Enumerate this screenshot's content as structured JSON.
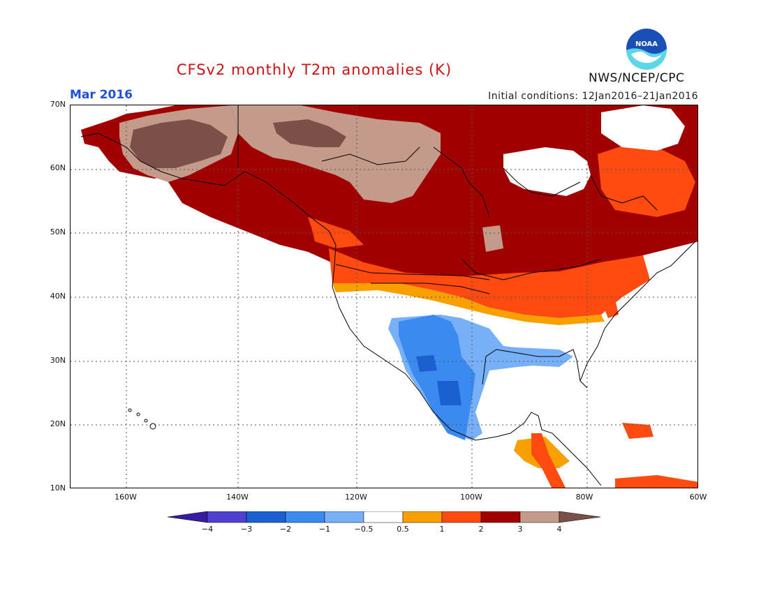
{
  "title": "CFSv2 monthly T2m anomalies (K)",
  "month": "Mar 2016",
  "initial_conditions": "Initial conditions: 12Jan2016–21Jan2016",
  "agency": "NWS/NCEP/CPC",
  "logo_text": "NOAA",
  "colors": {
    "neg4": "#3a1aa0",
    "neg3": "#5040d0",
    "neg2": "#1a60d0",
    "neg1": "#3a8af0",
    "neg05": "#78b0f8",
    "neutral": "#ffffff",
    "pos05": "#f8a000",
    "pos1": "#ff4a10",
    "pos2": "#a00000",
    "pos3": "#c49a8a",
    "pos4": "#7a5048",
    "title": "#d01010",
    "month": "#2050d8"
  },
  "lat_labels": [
    "70N",
    "60N",
    "50N",
    "40N",
    "30N",
    "20N",
    "10N"
  ],
  "lon_labels": [
    "160W",
    "140W",
    "120W",
    "100W",
    "80W",
    "60W"
  ],
  "legend_ticks": [
    "−4",
    "−3",
    "−2",
    "−1",
    "−0.5",
    "0.5",
    "1",
    "2",
    "3",
    "4"
  ]
}
